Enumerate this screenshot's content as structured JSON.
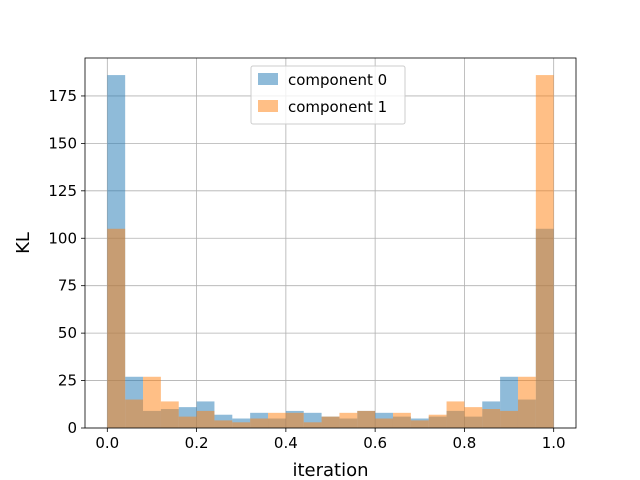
{
  "chart_data": {
    "type": "bar",
    "subtype": "overlaid-histogram",
    "title": "",
    "xlabel": "iteration",
    "ylabel": "KL",
    "xlim": [
      -0.05,
      1.05
    ],
    "ylim": [
      0,
      195
    ],
    "xticks": [
      0.0,
      0.2,
      0.4,
      0.6,
      0.8,
      1.0
    ],
    "xtick_labels": [
      "0.0",
      "0.2",
      "0.4",
      "0.6",
      "0.8",
      "1.0"
    ],
    "yticks": [
      0,
      25,
      50,
      75,
      100,
      125,
      150,
      175
    ],
    "ytick_labels": [
      "0",
      "25",
      "50",
      "75",
      "100",
      "125",
      "150",
      "175"
    ],
    "grid": true,
    "legend_position": "top-center",
    "bin_edges": [
      0.0,
      0.04,
      0.08,
      0.12,
      0.16,
      0.2,
      0.24,
      0.28,
      0.32,
      0.36,
      0.4,
      0.44,
      0.48,
      0.52,
      0.56,
      0.6,
      0.64,
      0.68,
      0.72,
      0.76,
      0.8,
      0.84,
      0.88,
      0.92,
      0.96,
      1.0
    ],
    "series": [
      {
        "name": "component 0",
        "color": "#1f77b4",
        "alpha": 0.5,
        "values": [
          186,
          27,
          9,
          10,
          11,
          14,
          7,
          5,
          8,
          5,
          9,
          8,
          6,
          5,
          9,
          8,
          6,
          5,
          6,
          9,
          6,
          14,
          27,
          15,
          105
        ]
      },
      {
        "name": "component 1",
        "color": "#ff7f0e",
        "alpha": 0.5,
        "values": [
          105,
          15,
          27,
          14,
          6,
          9,
          4,
          3,
          5,
          8,
          8,
          3,
          6,
          8,
          9,
          5,
          8,
          4,
          7,
          14,
          11,
          10,
          9,
          27,
          186
        ]
      }
    ]
  }
}
